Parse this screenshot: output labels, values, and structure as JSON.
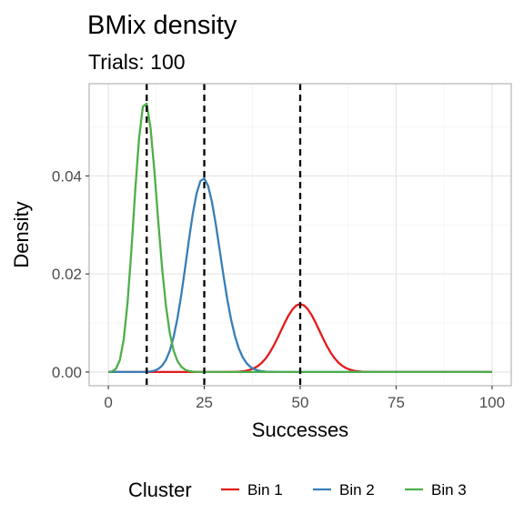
{
  "chart_data": {
    "type": "line",
    "title": "BMix density",
    "subtitle": "Trials: 100",
    "xlabel": "Successes",
    "ylabel": "Density",
    "xlim": [
      -5,
      105
    ],
    "ylim": [
      -0.0028,
      0.0588
    ],
    "x_ticks": [
      0,
      25,
      50,
      75,
      100
    ],
    "x_tick_labels": [
      "0",
      "25",
      "50",
      "75",
      "100"
    ],
    "y_ticks": [
      0.0,
      0.02,
      0.04
    ],
    "y_tick_labels": [
      "0.00",
      "0.02",
      "0.04"
    ],
    "grid": true,
    "legend": {
      "title": "Cluster",
      "position": "bottom"
    },
    "series": [
      {
        "name": "Bin 1",
        "color": "#E41A1C",
        "trials": 100,
        "p": 0.5,
        "weight": 0.174
      },
      {
        "name": "Bin 2",
        "color": "#377EB8",
        "trials": 100,
        "p": 0.25,
        "weight": 0.43
      },
      {
        "name": "Bin 3",
        "color": "#4DAF4A",
        "trials": 100,
        "p": 0.1,
        "weight": 0.415
      }
    ],
    "vlines": [
      10,
      25,
      50
    ]
  }
}
